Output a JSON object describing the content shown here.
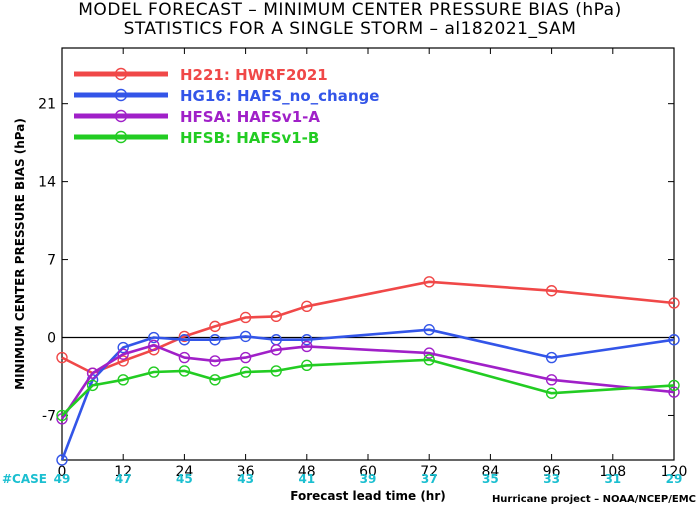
{
  "title": "MODEL FORECAST – MINIMUM CENTER PRESSURE BIAS (hPa)",
  "subtitle": "STATISTICS FOR A SINGLE STORM – al182021_SAM",
  "footer": "Hurricane project – NOAA/NCEP/EMC",
  "case_label": "#CASE",
  "colors": {
    "case": "#1bbfd0",
    "zero_line": "#000000"
  },
  "chart_data": {
    "type": "line",
    "title": "MODEL FORECAST – MINIMUM CENTER PRESSURE BIAS (hPa)",
    "subtitle": "STATISTICS FOR A SINGLE STORM – al182021_SAM",
    "xlabel": "Forecast lead time (hr)",
    "ylabel": "MINIMUM CENTER PRESSURE BIAS (hPa)",
    "xlim": [
      0,
      120
    ],
    "ylim": [
      -11,
      26
    ],
    "xticks": [
      "0",
      "12",
      "24",
      "36",
      "48",
      "60",
      "72",
      "84",
      "96",
      "108",
      "120"
    ],
    "yticks": [
      "-7",
      "0",
      "7",
      "14",
      "21"
    ],
    "case_x": [
      0,
      12,
      24,
      36,
      48,
      60,
      72,
      84,
      96,
      108,
      120
    ],
    "case_counts": [
      "49",
      "47",
      "45",
      "43",
      "41",
      "39",
      "37",
      "35",
      "33",
      "31",
      "29"
    ],
    "legend_position": "top-left",
    "grid": false,
    "series": [
      {
        "name": "H221: HWRF2021",
        "color": "#f04848",
        "x": [
          0,
          6,
          12,
          18,
          24,
          30,
          36,
          42,
          48,
          72,
          96,
          120
        ],
        "y": [
          -1.8,
          -3.2,
          -2.1,
          -1.1,
          0.1,
          1.0,
          1.8,
          1.9,
          2.8,
          5.0,
          4.2,
          3.1
        ]
      },
      {
        "name": "HG16: HAFS_no_change",
        "color": "#3355e8",
        "x": [
          0,
          6,
          12,
          18,
          24,
          30,
          36,
          42,
          48,
          72,
          96,
          120
        ],
        "y": [
          -11,
          -3.8,
          -0.9,
          0.0,
          -0.2,
          -0.2,
          0.1,
          -0.2,
          -0.2,
          0.7,
          -1.8,
          -0.2
        ]
      },
      {
        "name": "HFSA: HAFSv1-A",
        "color": "#a020c8",
        "x": [
          0,
          6,
          12,
          18,
          24,
          30,
          36,
          42,
          48,
          72,
          96,
          120
        ],
        "y": [
          -7.3,
          -3.2,
          -1.5,
          -0.7,
          -1.8,
          -2.1,
          -1.8,
          -1.1,
          -0.8,
          -1.4,
          -3.8,
          -4.9
        ]
      },
      {
        "name": "HFSB: HAFSv1-B",
        "color": "#22cc22",
        "x": [
          0,
          6,
          12,
          18,
          24,
          30,
          36,
          42,
          48,
          72,
          96,
          120
        ],
        "y": [
          -7.0,
          -4.3,
          -3.8,
          -3.1,
          -3.0,
          -3.8,
          -3.1,
          -3.0,
          -2.5,
          -2.0,
          -5.0,
          -4.3
        ]
      }
    ]
  }
}
